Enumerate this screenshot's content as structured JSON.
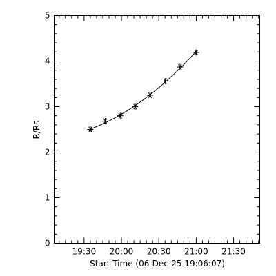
{
  "chart_data": {
    "type": "scatter",
    "title": "",
    "xlabel": "Start Time (06-Dec-25 19:06:07)",
    "ylabel": "R/Rs",
    "xlim": [
      "19:06",
      "21:51"
    ],
    "ylim": [
      0,
      5
    ],
    "grid": false,
    "marker": "asterisk",
    "fit_line": true,
    "x_ticks": [
      "19:30",
      "20:00",
      "20:30",
      "21:00",
      "21:30"
    ],
    "y_ticks": [
      "0",
      "1",
      "2",
      "3",
      "4",
      "5"
    ],
    "series": [
      {
        "x": [
          "19:35",
          "19:47",
          "19:59",
          "20:11",
          "20:23",
          "20:35",
          "20:47",
          "21:00"
        ],
        "y": [
          2.5,
          2.68,
          2.8,
          3.0,
          3.25,
          3.56,
          3.87,
          4.19
        ]
      }
    ]
  }
}
